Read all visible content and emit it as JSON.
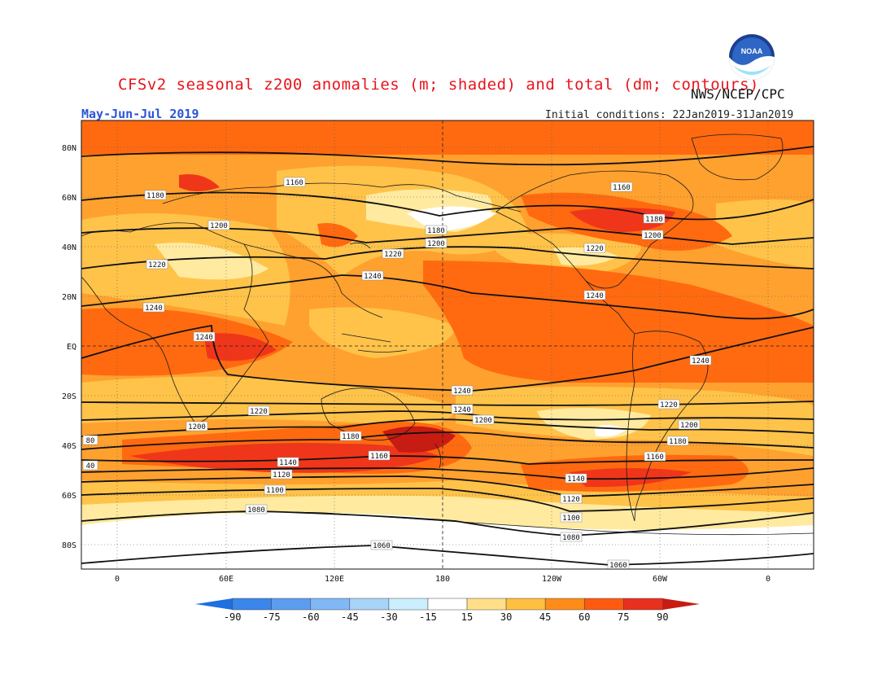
{
  "header": {
    "title": "CFSv2 seasonal z200 anomalies (m; shaded) and total (dm; contours)",
    "agency": "NWS/NCEP/CPC",
    "logo_text": "NOAA",
    "period": "May-Jun-Jul 2019",
    "initial_conditions": "Initial conditions: 22Jan2019-31Jan2019"
  },
  "map": {
    "lat_labels": [
      "80N",
      "60N",
      "40N",
      "20N",
      "EQ",
      "20S",
      "40S",
      "60S",
      "80S"
    ],
    "lon_labels": [
      "0",
      "60E",
      "120E",
      "180",
      "120W",
      "60W",
      "0"
    ],
    "contour_labels": [
      "1160",
      "1180",
      "1200",
      "1220",
      "1240",
      "1240",
      "1240",
      "1160",
      "1180",
      "1200",
      "1220",
      "1240",
      "1180",
      "1200",
      "1220",
      "1240",
      "1240",
      "1240",
      "1220",
      "1220",
      "1200",
      "1200",
      "1180",
      "1160",
      "1140",
      "1120",
      "1100",
      "1080",
      "1060",
      "1160",
      "1180",
      "1200",
      "1220",
      "1140",
      "1120",
      "1100",
      "1080",
      "1060",
      "80",
      "40"
    ],
    "colors": {
      "white": "#ffffff",
      "light_yellow": "#ffeaa0",
      "yellow": "#ffc34a",
      "light_orange": "#ffa12f",
      "orange": "#ff6a10",
      "red": "#f0361a",
      "dark_red": "#c81b12"
    }
  },
  "colorbar": {
    "ticks": [
      "-90",
      "-75",
      "-60",
      "-45",
      "-30",
      "-15",
      "15",
      "30",
      "45",
      "60",
      "75",
      "90"
    ],
    "colors": [
      "#1e6fe0",
      "#3a86ea",
      "#5c9df0",
      "#80b8f5",
      "#a9d4fa",
      "#cbeffd",
      "#ffffff",
      "#ffe088",
      "#ffc040",
      "#ff8c18",
      "#ff5a10",
      "#e8301e",
      "#c81b12"
    ]
  }
}
